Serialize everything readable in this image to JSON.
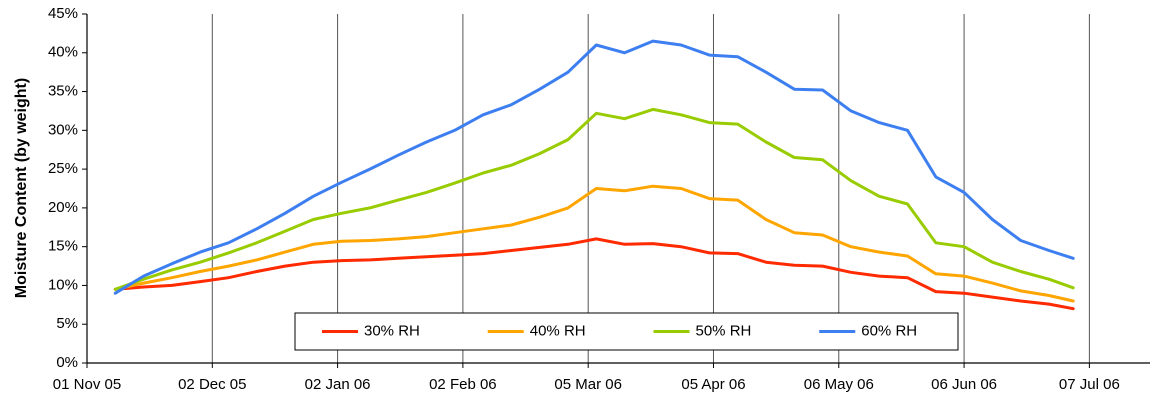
{
  "chart_data": {
    "type": "line",
    "y_label": "Moisture Content (by weight)",
    "x": [
      "2005-11-08",
      "2005-11-15",
      "2005-11-22",
      "2005-11-29",
      "2005-12-06",
      "2005-12-13",
      "2005-12-20",
      "2005-12-27",
      "2006-01-03",
      "2006-01-10",
      "2006-01-17",
      "2006-01-24",
      "2006-01-31",
      "2006-02-07",
      "2006-02-14",
      "2006-02-21",
      "2006-02-28",
      "2006-03-07",
      "2006-03-14",
      "2006-03-21",
      "2006-03-28",
      "2006-04-04",
      "2006-04-11",
      "2006-04-18",
      "2006-04-25",
      "2006-05-02",
      "2006-05-09",
      "2006-05-16",
      "2006-05-23",
      "2006-05-30",
      "2006-06-06",
      "2006-06-13",
      "2006-06-20",
      "2006-06-27",
      "2006-07-03"
    ],
    "series": [
      {
        "name": "30% RH",
        "color": "#ff2a00",
        "values": [
          9.5,
          9.8,
          10.0,
          10.5,
          11.0,
          11.8,
          12.5,
          13.0,
          13.2,
          13.3,
          13.5,
          13.7,
          13.9,
          14.1,
          14.5,
          14.9,
          15.3,
          16.0,
          15.3,
          15.4,
          15.0,
          14.2,
          14.1,
          13.0,
          12.6,
          12.5,
          11.7,
          11.2,
          11.0,
          9.2,
          9.0,
          8.5,
          8.0,
          7.6,
          7.0
        ]
      },
      {
        "name": "40% RH",
        "color": "#ffa500",
        "values": [
          9.5,
          10.3,
          11.0,
          11.8,
          12.5,
          13.3,
          14.3,
          15.3,
          15.7,
          15.8,
          16.0,
          16.3,
          16.8,
          17.3,
          17.8,
          18.8,
          20.0,
          22.5,
          22.2,
          22.8,
          22.5,
          21.2,
          21.0,
          18.5,
          16.8,
          16.5,
          15.0,
          14.3,
          13.8,
          11.5,
          11.2,
          10.3,
          9.3,
          8.7,
          8.0
        ]
      },
      {
        "name": "50% RH",
        "color": "#99cc00",
        "values": [
          9.5,
          10.8,
          12.0,
          13.0,
          14.2,
          15.5,
          17.0,
          18.5,
          19.3,
          20.0,
          21.0,
          22.0,
          23.2,
          24.5,
          25.5,
          27.0,
          28.8,
          32.2,
          31.5,
          32.7,
          32.0,
          31.0,
          30.8,
          28.5,
          26.5,
          26.2,
          23.5,
          21.5,
          20.5,
          15.5,
          15.0,
          13.0,
          11.8,
          10.8,
          9.7
        ]
      },
      {
        "name": "60% RH",
        "color": "#3d7ff0",
        "values": [
          9.0,
          11.2,
          12.8,
          14.3,
          15.5,
          17.3,
          19.3,
          21.5,
          23.3,
          25.0,
          26.8,
          28.5,
          30.0,
          32.0,
          33.3,
          35.3,
          37.5,
          41.0,
          40.0,
          41.5,
          41.0,
          39.7,
          39.5,
          37.5,
          35.3,
          35.2,
          32.5,
          31.0,
          30.0,
          24.0,
          22.0,
          18.5,
          15.8,
          14.5,
          13.5
        ]
      }
    ],
    "xlim": [
      "2005-11-01",
      "2006-07-22"
    ],
    "xticks": [
      {
        "value": "2005-11-01",
        "label": "01 Nov 05"
      },
      {
        "value": "2005-12-02",
        "label": "02 Dec 05"
      },
      {
        "value": "2006-01-02",
        "label": "02 Jan 06"
      },
      {
        "value": "2006-02-02",
        "label": "02 Feb 06"
      },
      {
        "value": "2006-03-05",
        "label": "05 Mar 06"
      },
      {
        "value": "2006-04-05",
        "label": "05 Apr 06"
      },
      {
        "value": "2006-05-06",
        "label": "06 May 06"
      },
      {
        "value": "2006-06-06",
        "label": "06 Jun 06"
      },
      {
        "value": "2006-07-07",
        "label": "07 Jul 06"
      }
    ],
    "ylim": [
      0,
      45
    ],
    "yticks": [
      {
        "value": 0,
        "label": "0%"
      },
      {
        "value": 5,
        "label": "5%"
      },
      {
        "value": 10,
        "label": "10%"
      },
      {
        "value": 15,
        "label": "15%"
      },
      {
        "value": 20,
        "label": "20%"
      },
      {
        "value": 25,
        "label": "25%"
      },
      {
        "value": 30,
        "label": "30%"
      },
      {
        "value": 35,
        "label": "35%"
      },
      {
        "value": 40,
        "label": "40%"
      },
      {
        "value": 45,
        "label": "45%"
      }
    ],
    "xgrid": true,
    "legend": "lower-center"
  }
}
